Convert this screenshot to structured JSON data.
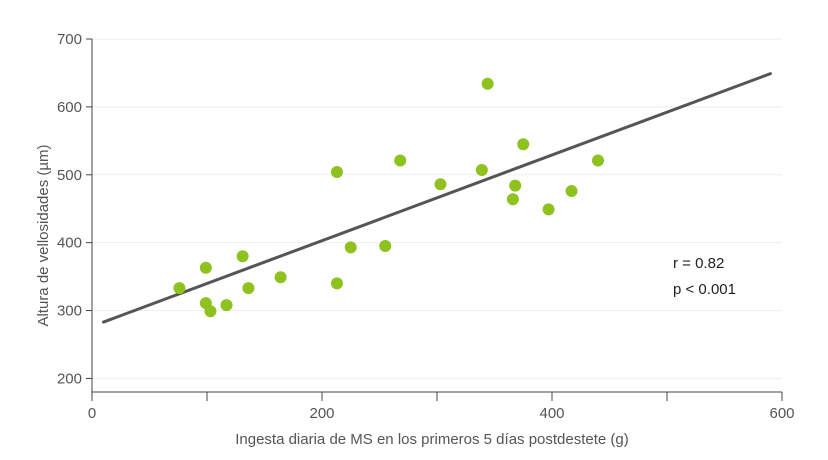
{
  "chart_data": {
    "type": "scatter",
    "xlabel": "Ingesta diaria de MS en los primeros 5 días postdestete (g)",
    "ylabel": "Altura de vellosidades (µm)",
    "xlim": [
      0,
      600
    ],
    "ylim": [
      180,
      700
    ],
    "x_ticks": [
      0,
      100,
      200,
      300,
      400,
      500,
      600
    ],
    "x_tick_labels": [
      "0",
      "",
      "200",
      "",
      "400",
      "",
      "600"
    ],
    "y_ticks": [
      200,
      300,
      400,
      500,
      600,
      700
    ],
    "y_tick_labels": [
      "200",
      "300",
      "400",
      "500",
      "600",
      "700"
    ],
    "grid": "horizontal",
    "points": [
      {
        "x": 76,
        "y": 333
      },
      {
        "x": 99,
        "y": 363
      },
      {
        "x": 99,
        "y": 311
      },
      {
        "x": 103,
        "y": 299
      },
      {
        "x": 117,
        "y": 308
      },
      {
        "x": 131,
        "y": 380
      },
      {
        "x": 136,
        "y": 333
      },
      {
        "x": 164,
        "y": 349
      },
      {
        "x": 213,
        "y": 340
      },
      {
        "x": 213,
        "y": 504
      },
      {
        "x": 225,
        "y": 393
      },
      {
        "x": 255,
        "y": 395
      },
      {
        "x": 268,
        "y": 521
      },
      {
        "x": 303,
        "y": 486
      },
      {
        "x": 339,
        "y": 507
      },
      {
        "x": 344,
        "y": 634
      },
      {
        "x": 366,
        "y": 464
      },
      {
        "x": 368,
        "y": 484
      },
      {
        "x": 375,
        "y": 545
      },
      {
        "x": 397,
        "y": 449
      },
      {
        "x": 417,
        "y": 476
      },
      {
        "x": 440,
        "y": 521
      }
    ],
    "trend_line": {
      "x": [
        10,
        590
      ],
      "y": [
        283,
        649
      ]
    },
    "annotations": [
      "r = 0.82",
      "p < 0.001"
    ],
    "colors": {
      "points": "#8dc21f",
      "trend_line": "#555555",
      "axis": "#444444",
      "grid": "#eeeeee",
      "text": "#555555"
    }
  }
}
